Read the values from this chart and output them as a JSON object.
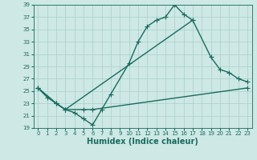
{
  "xlabel": "Humidex (Indice chaleur)",
  "bg_color": "#cde8e5",
  "grid_color": "#aacfcb",
  "line_color": "#1a6b5e",
  "xlim": [
    -0.5,
    23.5
  ],
  "ylim": [
    19,
    39
  ],
  "xticks": [
    0,
    1,
    2,
    3,
    4,
    5,
    6,
    7,
    8,
    9,
    10,
    11,
    12,
    13,
    14,
    15,
    16,
    17,
    18,
    19,
    20,
    21,
    22,
    23
  ],
  "yticks": [
    19,
    21,
    23,
    25,
    27,
    29,
    31,
    33,
    35,
    37,
    39
  ],
  "line1_x": [
    0,
    1,
    2,
    3,
    4,
    5,
    6,
    7,
    8,
    10,
    11,
    12,
    13,
    14,
    15,
    16,
    17
  ],
  "line1_y": [
    25.5,
    24.0,
    23.0,
    22.0,
    21.5,
    20.5,
    19.5,
    22.0,
    24.5,
    29.5,
    33.0,
    35.5,
    36.5,
    37.0,
    39.0,
    37.5,
    36.5
  ],
  "line2_x": [
    0,
    2,
    3,
    17,
    19,
    20,
    21,
    22,
    23
  ],
  "line2_y": [
    25.5,
    23.0,
    22.0,
    36.5,
    30.5,
    28.5,
    28.0,
    27.0,
    26.5
  ],
  "line3_x": [
    0,
    2,
    3,
    5,
    6,
    23
  ],
  "line3_y": [
    25.5,
    23.0,
    22.0,
    22.0,
    22.0,
    25.5
  ],
  "marker": "+",
  "marker_size": 4,
  "linewidth": 1.0
}
